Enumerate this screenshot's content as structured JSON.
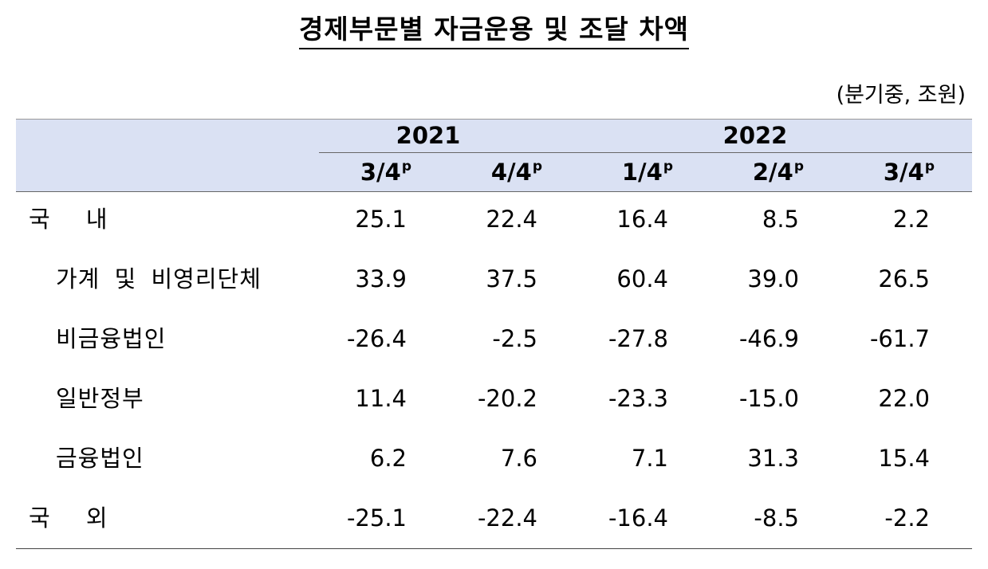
{
  "header": {
    "title": "경제부문별 자금운용 및 조달 차액",
    "unit": "(분기중, 조원)"
  },
  "table": {
    "years": [
      {
        "label": "2021",
        "span": 2
      },
      {
        "label": "2022",
        "span": 3
      }
    ],
    "columns": [
      {
        "quarter": "3/4",
        "flag": "p"
      },
      {
        "quarter": "4/4",
        "flag": "p"
      },
      {
        "quarter": "1/4",
        "flag": "p"
      },
      {
        "quarter": "2/4",
        "flag": "p"
      },
      {
        "quarter": "3/4",
        "flag": "p"
      }
    ],
    "rows": [
      {
        "label": "국 내",
        "indent": false,
        "cells": [
          "25.1",
          "22.4",
          "16.4",
          "8.5",
          "2.2"
        ]
      },
      {
        "label": "가계 및 비영리단체",
        "indent": true,
        "cells": [
          "33.9",
          "37.5",
          "60.4",
          "39.0",
          "26.5"
        ]
      },
      {
        "label": "비금융법인",
        "indent": true,
        "cells": [
          "-26.4",
          "-2.5",
          "-27.8",
          "-46.9",
          "-61.7"
        ]
      },
      {
        "label": "일반정부",
        "indent": true,
        "cells": [
          "11.4",
          "-20.2",
          "-23.3",
          "-15.0",
          "22.0"
        ]
      },
      {
        "label": "금융법인",
        "indent": true,
        "cells": [
          "6.2",
          "7.6",
          "7.1",
          "31.3",
          "15.4"
        ]
      },
      {
        "label": "국 외",
        "indent": false,
        "cells": [
          "-25.1",
          "-22.4",
          "-16.4",
          "-8.5",
          "-2.2"
        ]
      }
    ]
  }
}
